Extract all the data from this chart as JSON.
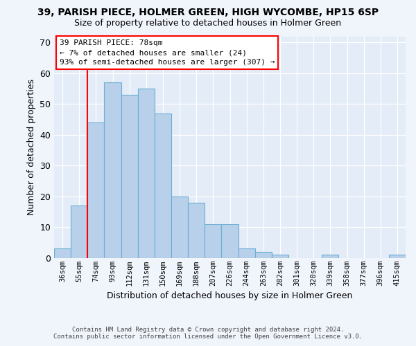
{
  "title": "39, PARISH PIECE, HOLMER GREEN, HIGH WYCOMBE, HP15 6SP",
  "subtitle": "Size of property relative to detached houses in Holmer Green",
  "xlabel": "Distribution of detached houses by size in Holmer Green",
  "ylabel": "Number of detached properties",
  "categories": [
    "36sqm",
    "55sqm",
    "74sqm",
    "93sqm",
    "112sqm",
    "131sqm",
    "150sqm",
    "169sqm",
    "188sqm",
    "207sqm",
    "226sqm",
    "244sqm",
    "263sqm",
    "282sqm",
    "301sqm",
    "320sqm",
    "339sqm",
    "358sqm",
    "377sqm",
    "396sqm",
    "415sqm"
  ],
  "values": [
    3,
    17,
    44,
    57,
    53,
    55,
    47,
    20,
    18,
    11,
    11,
    3,
    2,
    1,
    0,
    0,
    1,
    0,
    0,
    0,
    1
  ],
  "bar_color": "#b8d0ea",
  "bar_edge_color": "#6aaed6",
  "ylim": [
    0,
    72
  ],
  "yticks": [
    0,
    10,
    20,
    30,
    40,
    50,
    60,
    70
  ],
  "redline_bin": 2,
  "annotation_text_line1": "39 PARISH PIECE: 78sqm",
  "annotation_text_line2": "← 7% of detached houses are smaller (24)",
  "annotation_text_line3": "93% of semi-detached houses are larger (307) →",
  "footer_line1": "Contains HM Land Registry data © Crown copyright and database right 2024.",
  "footer_line2": "Contains public sector information licensed under the Open Government Licence v3.0.",
  "background_color": "#f0f4fb",
  "plot_bg_color": "#e4ecf7"
}
